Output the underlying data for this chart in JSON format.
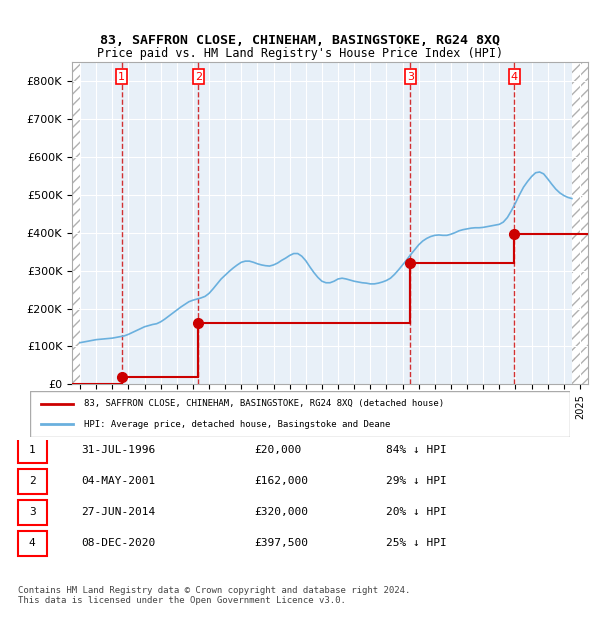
{
  "title1": "83, SAFFRON CLOSE, CHINEHAM, BASINGSTOKE, RG24 8XQ",
  "title2": "Price paid vs. HM Land Registry's House Price Index (HPI)",
  "ylabel": "",
  "xlim_start": 1993.5,
  "xlim_end": 2025.5,
  "ylim": [
    0,
    850000
  ],
  "yticks": [
    0,
    100000,
    200000,
    300000,
    400000,
    500000,
    600000,
    700000,
    800000
  ],
  "ytick_labels": [
    "£0",
    "£100K",
    "£200K",
    "£300K",
    "£400K",
    "£500K",
    "£600K",
    "£700K",
    "£800K"
  ],
  "transactions": [
    {
      "num": 1,
      "date": "31-JUL-1996",
      "year": 1996.57,
      "price": 20000,
      "pct": "84%",
      "dir": "↓"
    },
    {
      "num": 2,
      "date": "04-MAY-2001",
      "year": 2001.34,
      "price": 162000,
      "pct": "29%",
      "dir": "↓"
    },
    {
      "num": 3,
      "date": "27-JUN-2014",
      "year": 2014.49,
      "price": 320000,
      "pct": "20%",
      "dir": "↓"
    },
    {
      "num": 4,
      "date": "08-DEC-2020",
      "year": 2020.94,
      "price": 397500,
      "pct": "25%",
      "dir": "↓"
    }
  ],
  "hpi_color": "#6ab0de",
  "price_color": "#cc0000",
  "marker_color": "#cc0000",
  "dashed_color": "#cc0000",
  "bg_hatch_color": "#d0d0d0",
  "legend_label_red": "83, SAFFRON CLOSE, CHINEHAM, BASINGSTOKE, RG24 8XQ (detached house)",
  "legend_label_blue": "HPI: Average price, detached house, Basingstoke and Deane",
  "footer": "Contains HM Land Registry data © Crown copyright and database right 2024.\nThis data is licensed under the Open Government Licence v3.0.",
  "hpi_data_years": [
    1994.0,
    1994.25,
    1994.5,
    1994.75,
    1995.0,
    1995.25,
    1995.5,
    1995.75,
    1996.0,
    1996.25,
    1996.5,
    1996.75,
    1997.0,
    1997.25,
    1997.5,
    1997.75,
    1998.0,
    1998.25,
    1998.5,
    1998.75,
    1999.0,
    1999.25,
    1999.5,
    1999.75,
    2000.0,
    2000.25,
    2000.5,
    2000.75,
    2001.0,
    2001.25,
    2001.5,
    2001.75,
    2002.0,
    2002.25,
    2002.5,
    2002.75,
    2003.0,
    2003.25,
    2003.5,
    2003.75,
    2004.0,
    2004.25,
    2004.5,
    2004.75,
    2005.0,
    2005.25,
    2005.5,
    2005.75,
    2006.0,
    2006.25,
    2006.5,
    2006.75,
    2007.0,
    2007.25,
    2007.5,
    2007.75,
    2008.0,
    2008.25,
    2008.5,
    2008.75,
    2009.0,
    2009.25,
    2009.5,
    2009.75,
    2010.0,
    2010.25,
    2010.5,
    2010.75,
    2011.0,
    2011.25,
    2011.5,
    2011.75,
    2012.0,
    2012.25,
    2012.5,
    2012.75,
    2013.0,
    2013.25,
    2013.5,
    2013.75,
    2014.0,
    2014.25,
    2014.5,
    2014.75,
    2015.0,
    2015.25,
    2015.5,
    2015.75,
    2016.0,
    2016.25,
    2016.5,
    2016.75,
    2017.0,
    2017.25,
    2017.5,
    2017.75,
    2018.0,
    2018.25,
    2018.5,
    2018.75,
    2019.0,
    2019.25,
    2019.5,
    2019.75,
    2020.0,
    2020.25,
    2020.5,
    2020.75,
    2021.0,
    2021.25,
    2021.5,
    2021.75,
    2022.0,
    2022.25,
    2022.5,
    2022.75,
    2023.0,
    2023.25,
    2023.5,
    2023.75,
    2024.0,
    2024.25,
    2024.5
  ],
  "hpi_data_values": [
    110000,
    112000,
    114000,
    116000,
    118000,
    119000,
    120000,
    121000,
    122000,
    124000,
    126000,
    128000,
    132000,
    137000,
    142000,
    147000,
    152000,
    155000,
    158000,
    160000,
    165000,
    172000,
    180000,
    188000,
    196000,
    204000,
    211000,
    218000,
    222000,
    225000,
    228000,
    232000,
    240000,
    252000,
    265000,
    278000,
    288000,
    298000,
    307000,
    315000,
    322000,
    325000,
    325000,
    322000,
    318000,
    315000,
    313000,
    312000,
    315000,
    320000,
    327000,
    333000,
    340000,
    345000,
    345000,
    338000,
    326000,
    310000,
    295000,
    282000,
    272000,
    268000,
    268000,
    272000,
    278000,
    280000,
    278000,
    275000,
    272000,
    270000,
    268000,
    267000,
    265000,
    265000,
    267000,
    270000,
    274000,
    280000,
    290000,
    302000,
    315000,
    328000,
    342000,
    355000,
    368000,
    378000,
    385000,
    390000,
    393000,
    394000,
    393000,
    393000,
    396000,
    400000,
    405000,
    408000,
    410000,
    412000,
    413000,
    413000,
    414000,
    416000,
    418000,
    420000,
    422000,
    428000,
    440000,
    458000,
    478000,
    500000,
    520000,
    535000,
    548000,
    558000,
    560000,
    555000,
    542000,
    528000,
    515000,
    505000,
    498000,
    493000,
    490000
  ]
}
